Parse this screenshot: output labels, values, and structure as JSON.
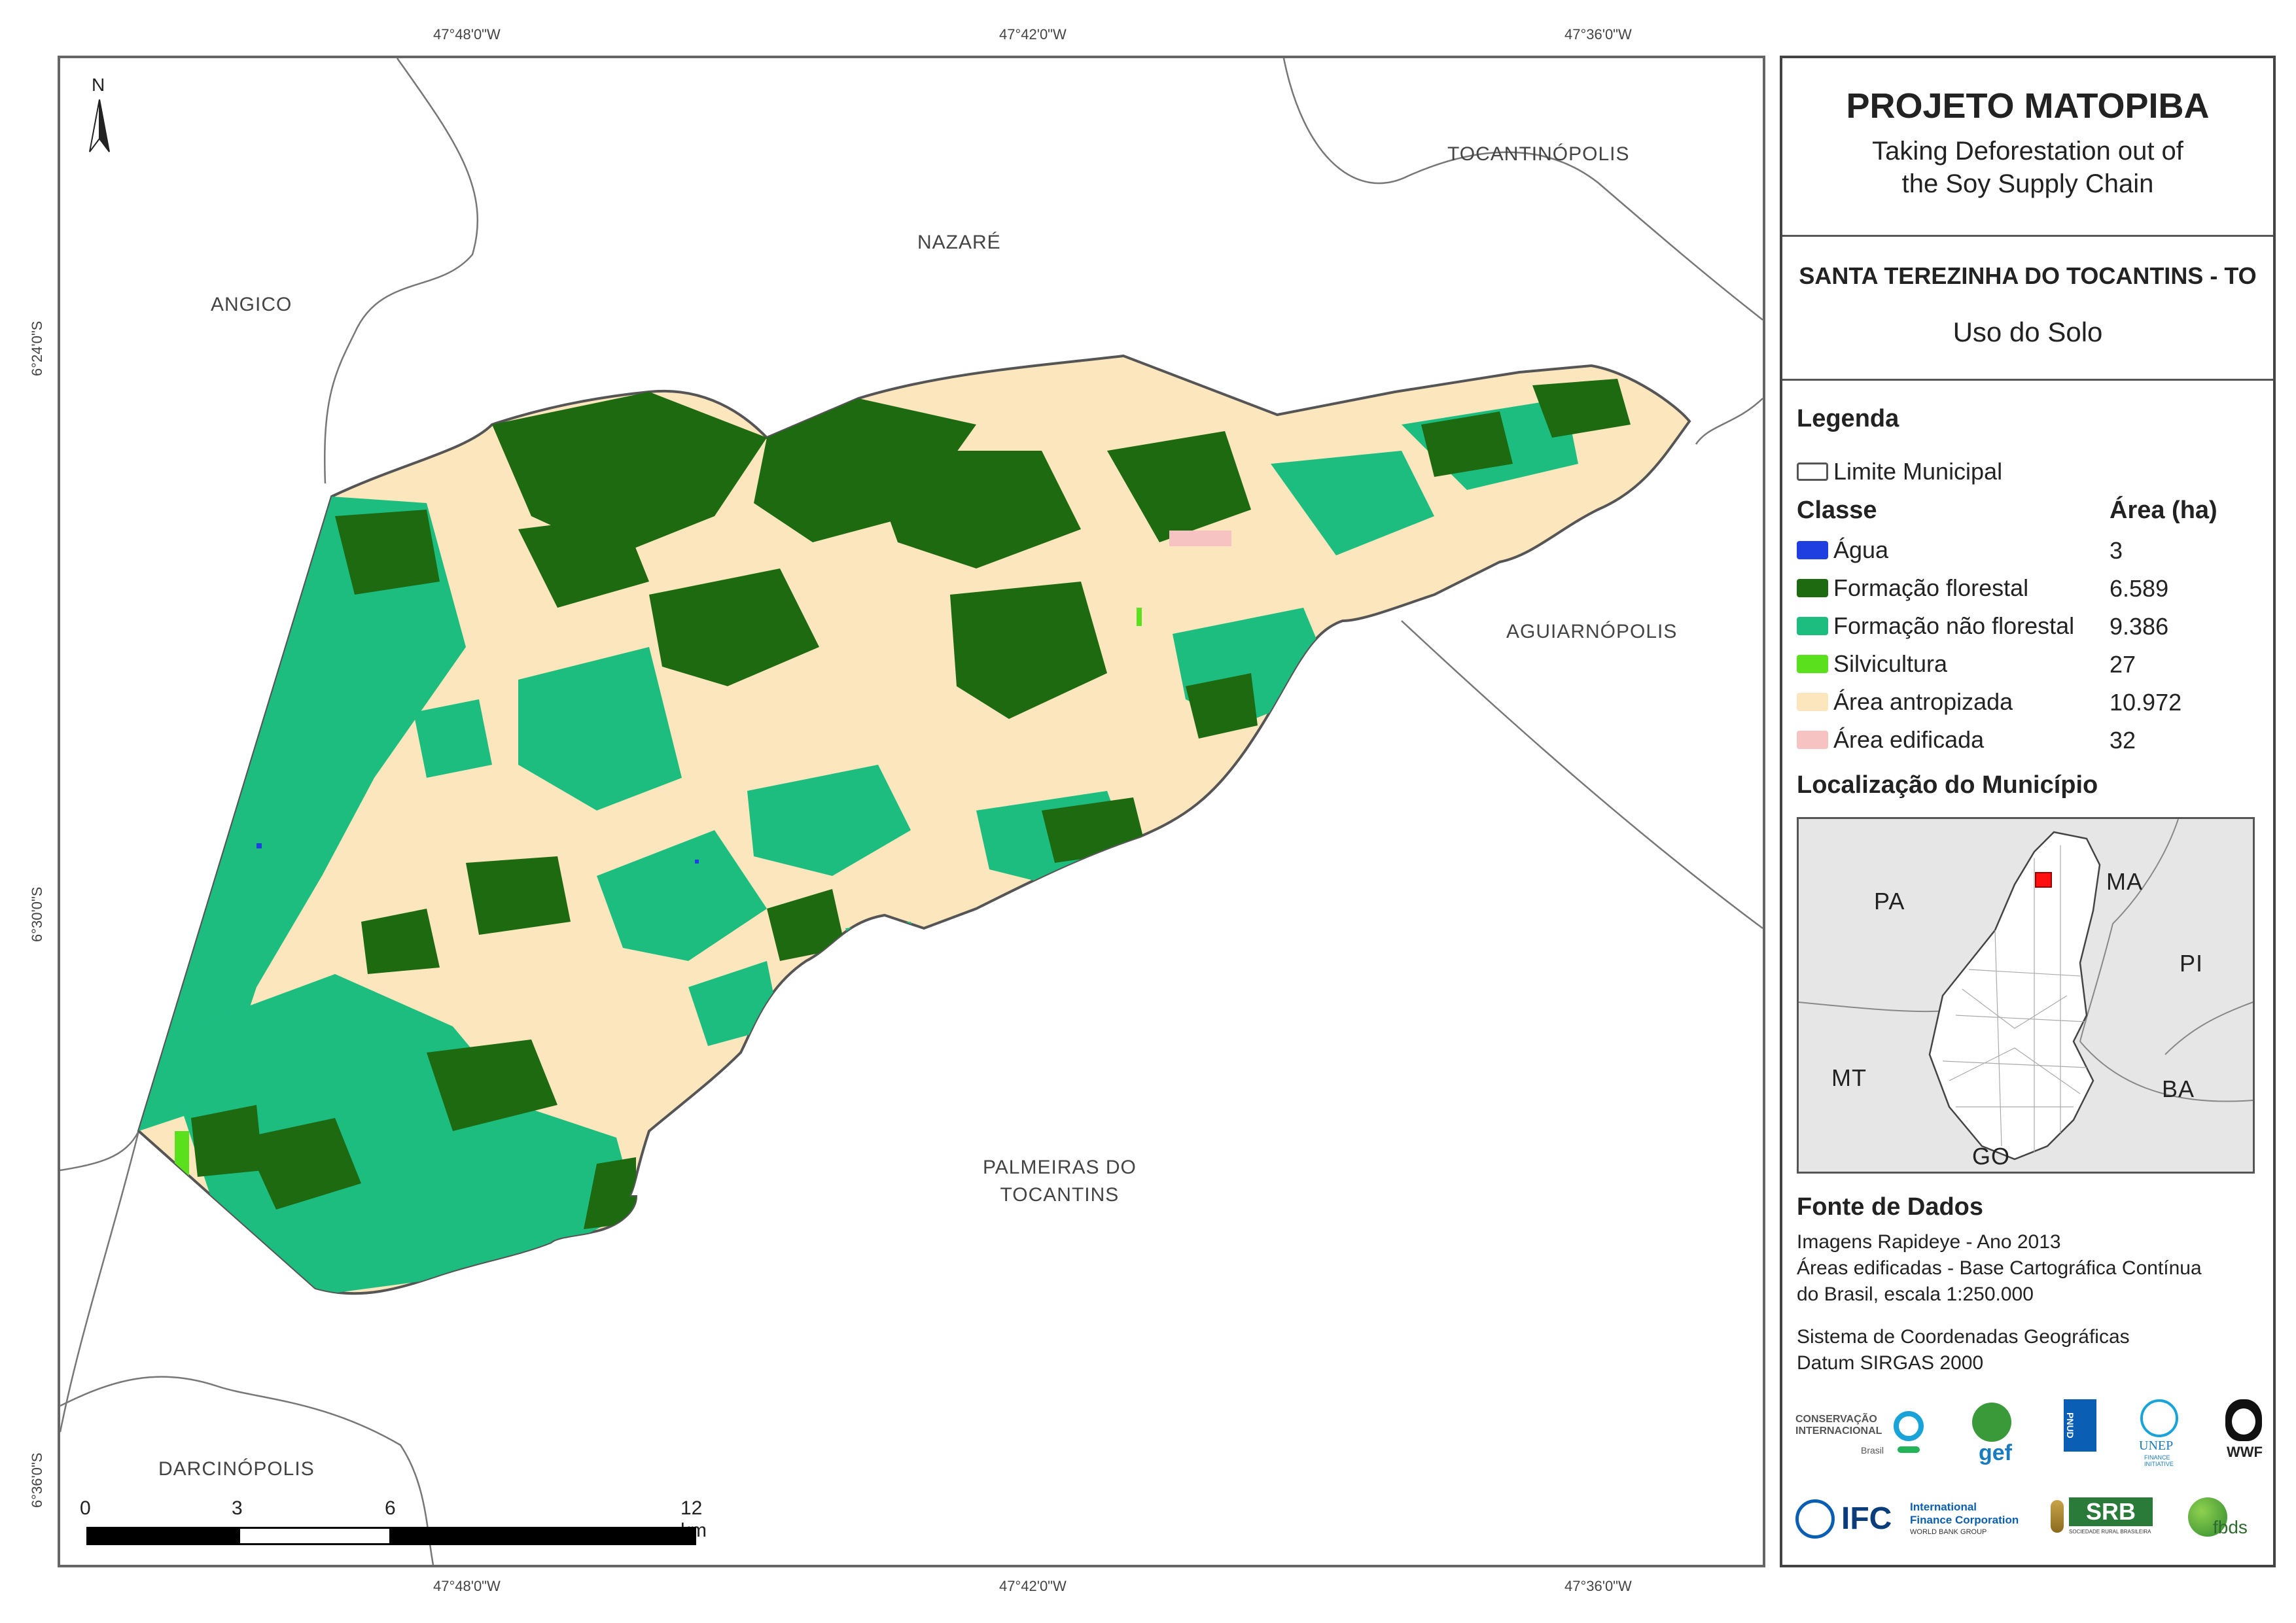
{
  "coordinates": {
    "top": [
      "47°48'0\"W",
      "47°42'0\"W",
      "47°36'0\"W"
    ],
    "bottom": [
      "47°48'0\"W",
      "47°42'0\"W",
      "47°36'0\"W"
    ],
    "left": [
      "6°24'0\"S",
      "6°30'0\"S",
      "6°36'0\"S"
    ]
  },
  "places": {
    "tocantinopolis": "TOCANTINÓPOLIS",
    "nazare": "NAZARÉ",
    "angico": "ANGICO",
    "aguiarnopolis": "AGUIARNÓPOLIS",
    "palmeiras_line1": "PALMEIRAS DO",
    "palmeiras_line2": "TOCANTINS",
    "darcinopolis": "DARCINÓPOLIS"
  },
  "north_arrow": "N",
  "scale_bar": {
    "labels": [
      "0",
      "3",
      "6",
      "12 km"
    ]
  },
  "panel": {
    "title": "PROJETO MATOPIBA",
    "subtitle_line1": "Taking Deforestation out of",
    "subtitle_line2": "the Soy Supply Chain",
    "municipality": "SANTA TEREZINHA DO TOCANTINS - TO",
    "theme": "Uso do Solo",
    "legend_heading": "Legenda",
    "boundary_label": "Limite Municipal",
    "class_heading": "Classe",
    "area_heading": "Área (ha)",
    "classes": [
      {
        "label": "Água",
        "area": "3",
        "color": "#1f3fe0"
      },
      {
        "label": "Formação florestal",
        "area": "6.589",
        "color": "#1d6a10"
      },
      {
        "label": "Formação não florestal",
        "area": "9.386",
        "color": "#1dbd80"
      },
      {
        "label": "Silvicultura",
        "area": "27",
        "color": "#5ae01c"
      },
      {
        "label": "Área antropizada",
        "area": "10.972",
        "color": "#fbe6bd"
      },
      {
        "label": "Área edificada",
        "area": "32",
        "color": "#f6c2c2"
      }
    ],
    "location_heading": "Localização do Município",
    "inset_labels": {
      "pa": "PA",
      "ma": "MA",
      "pi": "PI",
      "mt": "MT",
      "ba": "BA",
      "go": "GO"
    },
    "source_heading": "Fonte de Dados",
    "source_lines": [
      "Imagens Rapideye - Ano 2013",
      "Áreas edificadas - Base Cartográfica Contínua",
      "do Brasil, escala 1:250.000"
    ],
    "crs_lines": [
      "Sistema de Coordenadas Geográficas",
      "Datum SIRGAS 2000"
    ],
    "logos": {
      "ci": "CONSERVAÇÃO INTERNACIONAL",
      "ci_sub": "Brasil",
      "gef": "gef",
      "undp": "PNUD",
      "unep": "UNEP",
      "unep_sub": "FINANCE INITIATIVE",
      "wwf": "WWF",
      "ifc": "IFC",
      "ifc_line1": "International",
      "ifc_line2": "Finance Corporation",
      "ifc_line3": "WORLD BANK GROUP",
      "srb": "SRB",
      "srb_sub": "SOCIEDADE RURAL BRASILEIRA",
      "fbds": "fbds"
    }
  },
  "colors": {
    "forest": "#1d6a10",
    "nonforest": "#1dbd80",
    "anthropic": "#fbe6bd",
    "silviculture": "#5ae01c",
    "built": "#f6c2c2",
    "water": "#1f3fe0",
    "boundary": "#555555"
  }
}
